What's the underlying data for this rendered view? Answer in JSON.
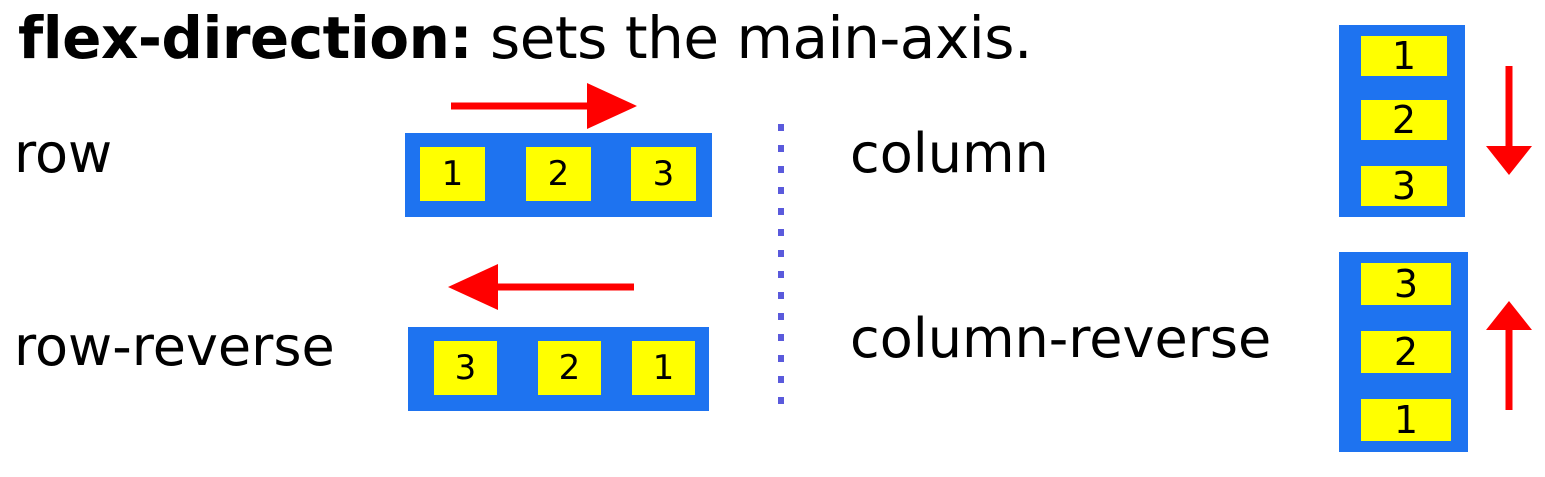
{
  "title": {
    "bold": "flex-direction:",
    "rest": " sets the main-axis."
  },
  "examples": {
    "row": {
      "label": "row",
      "items": [
        "1",
        "2",
        "3"
      ]
    },
    "row_reverse": {
      "label": "row-reverse",
      "items": [
        "3",
        "2",
        "1"
      ]
    },
    "column": {
      "label": "column",
      "items": [
        "1",
        "2",
        "3"
      ]
    },
    "column_reverse": {
      "label": "column-reverse",
      "items": [
        "3",
        "2",
        "1"
      ]
    }
  },
  "colors": {
    "container": "#1e73f0",
    "item": "#ffff00",
    "arrow": "#ff0000",
    "divider": "#5a5adc"
  },
  "icons": {
    "row_arrow": "arrow-right-icon",
    "row_reverse_arrow": "arrow-left-icon",
    "column_arrow": "arrow-down-icon",
    "column_reverse_arrow": "arrow-up-icon"
  }
}
